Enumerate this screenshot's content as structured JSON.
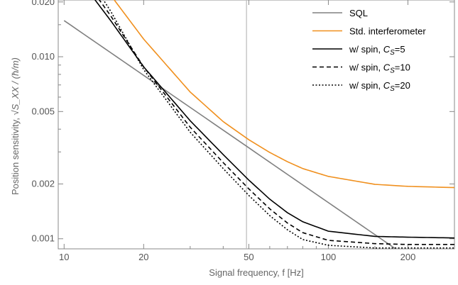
{
  "chart_data": {
    "type": "line",
    "xlabel": "Signal frequency, f [Hz]",
    "ylabel_text": "Position sensitivity, ",
    "ylabel_math": "√S_XX / (ħ/m)",
    "x_scale": "log",
    "y_scale": "log",
    "xlim": [
      9.5,
      300
    ],
    "ylim": [
      0.00088,
      0.0205
    ],
    "x_ticks": [
      {
        "value": 10,
        "label": "10"
      },
      {
        "value": 20,
        "label": "20"
      },
      {
        "value": 50,
        "label": "50"
      },
      {
        "value": 100,
        "label": "100"
      },
      {
        "value": 200,
        "label": "200"
      }
    ],
    "y_ticks": [
      {
        "value": 0.001,
        "label": "0.001"
      },
      {
        "value": 0.002,
        "label": "0.002"
      },
      {
        "value": 0.005,
        "label": "0.005"
      },
      {
        "value": 0.01,
        "label": "0.010"
      },
      {
        "value": 0.02,
        "label": "0.020"
      }
    ],
    "vertical_line": {
      "x": 49,
      "color": "#bbbbbb"
    },
    "legend_position": "top-right",
    "series": [
      {
        "name": "SQL",
        "color": "#808080",
        "dash": "solid",
        "x": [
          10,
          20,
          50,
          100,
          200
        ],
        "y": [
          0.0158,
          0.0079,
          0.00316,
          0.00158,
          0.00079
        ]
      },
      {
        "name": "Std. interferometer",
        "color": "#f0901e",
        "dash": "solid",
        "x": [
          15,
          20,
          30,
          40,
          50,
          60,
          70,
          80,
          100,
          150,
          200,
          300
        ],
        "y": [
          0.0218,
          0.0125,
          0.0064,
          0.0044,
          0.0035,
          0.00298,
          0.00265,
          0.00243,
          0.0022,
          0.00199,
          0.00194,
          0.00191
        ]
      },
      {
        "name": "w/ spin, C_S=5",
        "color": "#000000",
        "dash": "solid",
        "x": [
          13,
          15,
          20,
          30,
          40,
          50,
          60,
          70,
          80,
          100,
          150,
          200,
          300
        ],
        "y": [
          0.0208,
          0.0158,
          0.0088,
          0.00445,
          0.0029,
          0.0021,
          0.00165,
          0.00139,
          0.00124,
          0.0011,
          0.00103,
          0.00102,
          0.00101
        ]
      },
      {
        "name": "w/ spin, C_S=10",
        "color": "#000000",
        "dash": "dash",
        "x": [
          13.5,
          15,
          20,
          30,
          40,
          50,
          60,
          70,
          80,
          100,
          150,
          200,
          300
        ],
        "y": [
          0.0208,
          0.0168,
          0.0088,
          0.0041,
          0.00262,
          0.00188,
          0.00146,
          0.00122,
          0.00108,
          0.00098,
          0.00094,
          0.00093,
          0.00093
        ]
      },
      {
        "name": "w/ spin, C_S=20",
        "color": "#000000",
        "dash": "dot",
        "x": [
          14,
          15,
          20,
          30,
          40,
          50,
          60,
          70,
          80,
          100,
          150,
          200,
          300
        ],
        "y": [
          0.0208,
          0.0178,
          0.0085,
          0.00385,
          0.00243,
          0.00173,
          0.00134,
          0.00112,
          0.00099,
          0.00092,
          0.00089,
          0.00089,
          0.00089
        ]
      }
    ]
  }
}
